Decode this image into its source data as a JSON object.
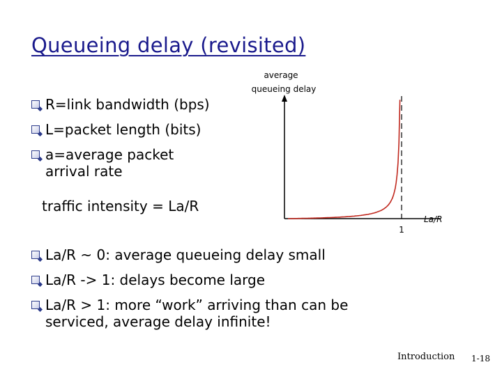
{
  "slide": {
    "title": "Queueing delay (revisited)",
    "bullets_top": [
      "R=link bandwidth (bps)",
      "L=packet length (bits)",
      "a=average packet",
      "arrival rate"
    ],
    "traffic_intensity": "traffic intensity = La/R",
    "bullets_bottom": [
      "La/R ~ 0: average queueing delay small",
      "La/R -> 1: delays become large",
      "La/R > 1: more “work” arriving than can be",
      "serviced, average delay infinite!"
    ],
    "footer": {
      "section": "Introduction",
      "page": "1-18"
    }
  },
  "chart_data": {
    "type": "line",
    "ylabel_line1": "average",
    "ylabel_line2": "queueing delay",
    "xlabel": "La/R",
    "x_tick": "1",
    "asymptote_x": 1,
    "curve_color": "#c0281e",
    "axis_color": "#000000"
  }
}
